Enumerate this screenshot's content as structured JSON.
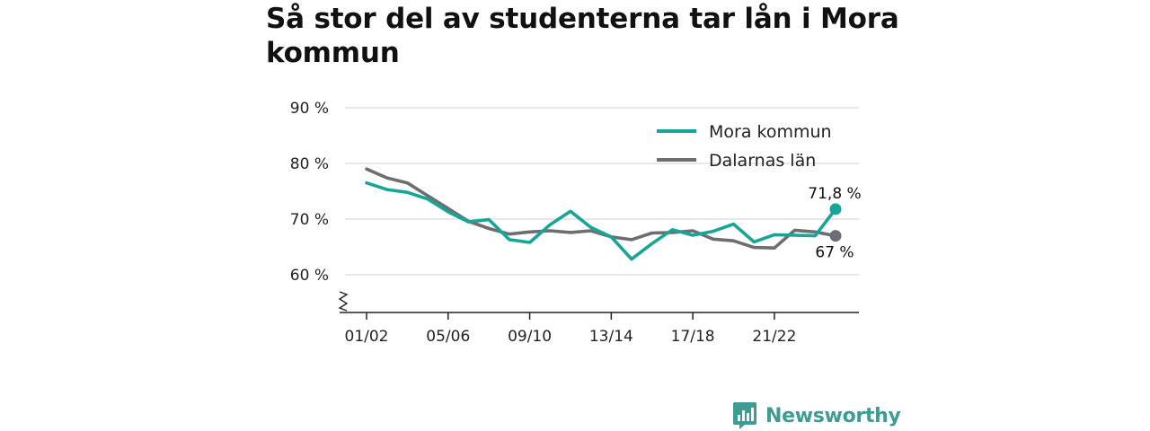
{
  "chart_data": {
    "type": "line",
    "title": "Så stor del av studenterna tar lån i Mora kommun",
    "x": [
      "01/02",
      "02/03",
      "03/04",
      "04/05",
      "05/06",
      "06/07",
      "07/08",
      "08/09",
      "09/10",
      "10/11",
      "11/12",
      "12/13",
      "13/14",
      "14/15",
      "15/16",
      "16/17",
      "17/18",
      "18/19",
      "19/20",
      "20/21",
      "21/22",
      "22/23",
      "23/24",
      "24/25"
    ],
    "xticks": [
      "01/02",
      "05/06",
      "09/10",
      "13/14",
      "17/18",
      "21/22"
    ],
    "yticks": [
      60,
      70,
      80,
      90
    ],
    "ytick_labels": [
      "60 %",
      "70 %",
      "80 %",
      "90 %"
    ],
    "ylim": [
      53.5,
      90
    ],
    "y_axis_break": true,
    "grid": true,
    "legend_position": "top-right",
    "series": [
      {
        "name": "Mora kommun",
        "color": "#16a596",
        "values": [
          76.5,
          75.3,
          74.8,
          73.6,
          71.3,
          69.5,
          69.9,
          66.3,
          65.8,
          69.0,
          71.4,
          68.5,
          66.8,
          62.8,
          65.6,
          68.1,
          67.1,
          67.8,
          69.1,
          65.9,
          67.2,
          67.1,
          67.0,
          71.8
        ],
        "end_label": "71,8 %"
      },
      {
        "name": "Dalarnas län",
        "color": "#6e6d72",
        "values": [
          79.0,
          77.4,
          76.5,
          74.2,
          71.9,
          69.6,
          68.3,
          67.3,
          67.7,
          67.9,
          67.6,
          67.9,
          66.8,
          66.3,
          67.5,
          67.6,
          67.9,
          66.4,
          66.1,
          64.9,
          64.8,
          68.0,
          67.7,
          67.0
        ],
        "end_label": "67 %"
      }
    ]
  },
  "brand": {
    "name": "Newsworthy",
    "icon": "newsworthy-chart-icon",
    "color": "#3f9b93"
  }
}
